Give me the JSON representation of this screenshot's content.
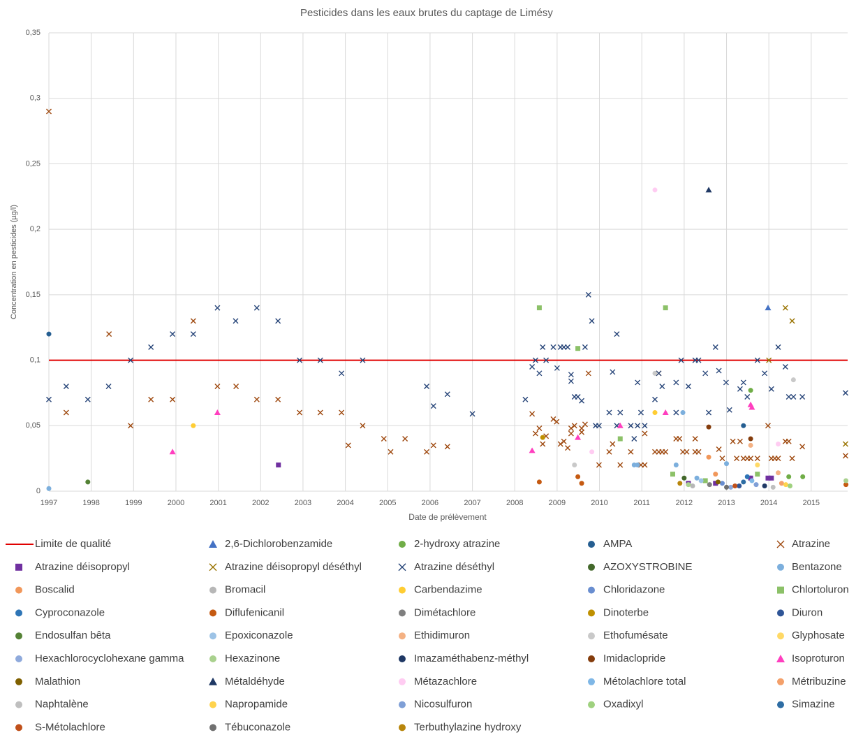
{
  "chart_data": {
    "type": "scatter",
    "title": "Pesticides dans les eaux brutes du captage de Limésy",
    "xlabel": "Date de prélèvement",
    "ylabel": "Concentration en pesticides (µg/l)",
    "xlim": [
      1997,
      2015.86
    ],
    "xticks": [
      1997,
      1998,
      1999,
      2000,
      2001,
      2002,
      2003,
      2004,
      2005,
      2006,
      2007,
      2008,
      2009,
      2010,
      2011,
      2012,
      2013,
      2014,
      2015
    ],
    "ylim": [
      0,
      0.35
    ],
    "yticks": [
      0,
      {
        "value": 0.05,
        "label": "0,05"
      },
      {
        "value": 0.1,
        "label": "0,1"
      },
      {
        "value": 0.15,
        "label": "0,15"
      },
      {
        "value": 0.2,
        "label": "0,2"
      },
      {
        "value": 0.25,
        "label": "0,25"
      },
      {
        "value": 0.3,
        "label": "0,3"
      },
      {
        "value": 0.35,
        "label": "0,35"
      }
    ],
    "grid": true,
    "legend": "bottom",
    "series": [
      {
        "name": "Limite de qualité",
        "marker": "line",
        "color": "#e00000",
        "x": [
          1997,
          2015.86
        ],
        "values": [
          0.1,
          0.1
        ]
      },
      {
        "name": "2,6-Dichlorobenzamide",
        "marker": "triangle",
        "color": "#4472c4",
        "x": [
          2013.98
        ],
        "values": [
          0.14
        ]
      },
      {
        "name": "2-hydroxy atrazine",
        "marker": "circle",
        "color": "#70ad47",
        "x": [
          2013.57,
          2014.47,
          2014.8
        ],
        "values": [
          0.077,
          0.011,
          0.011
        ]
      },
      {
        "name": "AMPA",
        "marker": "circle",
        "color": "#255e91",
        "x": [
          1997,
          2013.4,
          2013.57
        ],
        "values": [
          0.12,
          0.05,
          0.01
        ]
      },
      {
        "name": "Atrazine",
        "marker": "x",
        "color": "#9e480e",
        "x": [
          1997,
          1997.41,
          1998.42,
          1998.93,
          1999.41,
          1999.92,
          2000.41,
          2000.98,
          2001.42,
          2001.91,
          2002.41,
          2002.92,
          2003.41,
          2003.91,
          2004.07,
          2004.41,
          2004.91,
          2005.07,
          2005.41,
          2005.92,
          2006.08,
          2006.41,
          2008.41,
          2008.49,
          2008.58,
          2008.66,
          2008.74,
          2008.91,
          2008.99,
          2009.08,
          2009.16,
          2009.25,
          2009.33,
          2009.33,
          2009.41,
          2009.58,
          2009.58,
          2009.66,
          2009.74,
          2009.99,
          2010.23,
          2010.31,
          2010.49,
          2010.74,
          2010.98,
          2011.07,
          2011.07,
          2011.31,
          2011.4,
          2011.4,
          2011.48,
          2011.56,
          2011.81,
          2011.89,
          2011.97,
          2012.06,
          2012.26,
          2012.26,
          2012.34,
          2012.82,
          2012.9,
          2013.15,
          2013.24,
          2013.32,
          2013.4,
          2013.49,
          2013.57,
          2013.73,
          2013.98,
          2014.06,
          2014.14,
          2014.22,
          2014.39,
          2014.47,
          2014.55,
          2014.79,
          2015.81
        ],
        "values": [
          0.29,
          0.06,
          0.12,
          0.05,
          0.07,
          0.07,
          0.13,
          0.08,
          0.08,
          0.07,
          0.07,
          0.06,
          0.06,
          0.06,
          0.035,
          0.05,
          0.04,
          0.03,
          0.04,
          0.03,
          0.035,
          0.034,
          0.059,
          0.044,
          0.048,
          0.036,
          0.042,
          0.055,
          0.053,
          0.036,
          0.038,
          0.033,
          0.048,
          0.044,
          0.05,
          0.048,
          0.045,
          0.051,
          0.09,
          0.02,
          0.03,
          0.036,
          0.02,
          0.03,
          0.02,
          0.02,
          0.044,
          0.03,
          0.09,
          0.03,
          0.03,
          0.03,
          0.04,
          0.04,
          0.03,
          0.03,
          0.04,
          0.03,
          0.03,
          0.032,
          0.025,
          0.038,
          0.025,
          0.038,
          0.025,
          0.025,
          0.025,
          0.025,
          0.05,
          0.025,
          0.025,
          0.025,
          0.038,
          0.038,
          0.025,
          0.034,
          0.027
        ]
      },
      {
        "name": "Atrazine déisopropyl",
        "marker": "square",
        "color": "#7030a0",
        "x": [
          2002.42,
          2012.1,
          2012.74,
          2013.57,
          2013.98,
          2014.06
        ],
        "values": [
          0.02,
          0.006,
          0.006,
          0.01,
          0.01,
          0.01
        ]
      },
      {
        "name": "Atrazine déisopropyl déséthyl",
        "marker": "x",
        "color": "#997300",
        "x": [
          2014,
          2014.39,
          2014.55,
          2015.81
        ],
        "values": [
          0.1,
          0.14,
          0.13,
          0.036
        ]
      },
      {
        "name": "Atrazine déséthyl",
        "marker": "x",
        "color": "#264478",
        "x": [
          1997,
          1997.41,
          1997.92,
          1998.41,
          1998.93,
          1999.41,
          1999.92,
          2000.41,
          2000.98,
          2001.41,
          2001.91,
          2002.41,
          2002.92,
          2003.41,
          2003.91,
          2004.41,
          2005.92,
          2006.08,
          2006.41,
          2007,
          2008.25,
          2008.41,
          2008.49,
          2008.58,
          2008.66,
          2008.74,
          2008.91,
          2009,
          2009.08,
          2009.16,
          2009.25,
          2009.33,
          2009.33,
          2009.41,
          2009.49,
          2009.58,
          2009.66,
          2009.74,
          2009.82,
          2009.91,
          2009.99,
          2010.23,
          2010.31,
          2010.41,
          2010.41,
          2010.49,
          2010.74,
          2010.82,
          2010.9,
          2010.9,
          2010.98,
          2011.07,
          2011.31,
          2011.4,
          2011.48,
          2011.81,
          2011.81,
          2011.93,
          2012.1,
          2012.26,
          2012.34,
          2012.5,
          2012.58,
          2012.74,
          2012.82,
          2012.99,
          2013.07,
          2013.32,
          2013.4,
          2013.49,
          2013.73,
          2013.9,
          2014.06,
          2014.22,
          2014.39,
          2014.47,
          2014.58,
          2014.79,
          2015.81
        ],
        "values": [
          0.07,
          0.08,
          0.07,
          0.08,
          0.1,
          0.11,
          0.12,
          0.12,
          0.14,
          0.13,
          0.14,
          0.13,
          0.1,
          0.1,
          0.09,
          0.1,
          0.08,
          0.065,
          0.074,
          0.059,
          0.07,
          0.095,
          0.1,
          0.09,
          0.11,
          0.1,
          0.11,
          0.094,
          0.11,
          0.11,
          0.11,
          0.089,
          0.084,
          0.072,
          0.072,
          0.069,
          0.11,
          0.15,
          0.13,
          0.05,
          0.05,
          0.06,
          0.091,
          0.12,
          0.05,
          0.06,
          0.05,
          0.04,
          0.05,
          0.083,
          0.06,
          0.05,
          0.07,
          0.09,
          0.08,
          0.06,
          0.083,
          0.1,
          0.08,
          0.1,
          0.1,
          0.09,
          0.06,
          0.11,
          0.092,
          0.083,
          0.062,
          0.078,
          0.083,
          0.072,
          0.1,
          0.09,
          0.078,
          0.11,
          0.095,
          0.072,
          0.072,
          0.072,
          0.075
        ]
      },
      {
        "name": "AZOXYSTROBINE",
        "marker": "circle",
        "color": "#43682b",
        "x": [
          2012.0
        ],
        "values": [
          0.01
        ]
      },
      {
        "name": "Bentazone",
        "marker": "circle",
        "color": "#7cafdd",
        "x": [
          1997,
          2010.82,
          2010.9,
          2011.81,
          2011.97,
          2012.3,
          2013
        ],
        "values": [
          0.002,
          0.02,
          0.02,
          0.02,
          0.06,
          0.01,
          0.021
        ]
      },
      {
        "name": "Boscalid",
        "marker": "circle",
        "color": "#f1975a",
        "x": [
          2012.58,
          2012.74
        ],
        "values": [
          0.026,
          0.013
        ]
      },
      {
        "name": "Bromacil",
        "marker": "circle",
        "color": "#b7b7b7",
        "x": [
          2012.2
        ],
        "values": [
          0.004
        ]
      },
      {
        "name": "Carbendazime",
        "marker": "circle",
        "color": "#ffcd33",
        "x": [
          2000.41,
          2011.31
        ],
        "values": [
          0.05,
          0.06
        ]
      },
      {
        "name": "Chloridazone",
        "marker": "circle",
        "color": "#698ed0",
        "x": [
          2012.9
        ],
        "values": [
          0.006
        ]
      },
      {
        "name": "Chlortoluron",
        "marker": "square",
        "color": "#8cc168",
        "x": [
          2008.58,
          2009.49,
          2010.49,
          2011.56,
          2011.73,
          2012.5,
          2013.73
        ],
        "values": [
          0.14,
          0.109,
          0.04,
          0.14,
          0.013,
          0.008,
          0.013
        ]
      },
      {
        "name": "Cyproconazole",
        "marker": "circle",
        "color": "#2e75b6",
        "x": [
          2013.49
        ],
        "values": [
          0.011
        ]
      },
      {
        "name": "Diflufenicanil",
        "marker": "circle",
        "color": "#c55a11",
        "x": [
          2008.58,
          2009.49,
          2009.58,
          2015.82
        ],
        "values": [
          0.007,
          0.011,
          0.006,
          0.005
        ]
      },
      {
        "name": "Dimétachlore",
        "marker": "circle",
        "color": "#7f7f7f",
        "x": [
          2012.6
        ],
        "values": [
          0.005
        ]
      },
      {
        "name": "Dinoterbe",
        "marker": "circle",
        "color": "#bf9000",
        "x": [
          2008.66
        ],
        "values": [
          0.041
        ]
      },
      {
        "name": "Diuron",
        "marker": "circle",
        "color": "#2f5597",
        "x": [
          2013.3
        ],
        "values": [
          0.004
        ]
      },
      {
        "name": "Endosulfan bêta",
        "marker": "circle",
        "color": "#548235",
        "x": [
          1997.92
        ],
        "values": [
          0.007
        ]
      },
      {
        "name": "Epoxiconazole",
        "marker": "circle",
        "color": "#9dc3e6",
        "x": [
          2012.4
        ],
        "values": [
          0.008
        ]
      },
      {
        "name": "Ethidimuron",
        "marker": "circle",
        "color": "#f4b183",
        "x": [
          2013.57,
          2014.22
        ],
        "values": [
          0.035,
          0.014
        ]
      },
      {
        "name": "Ethofumésate",
        "marker": "circle",
        "color": "#c9c9c9",
        "x": [
          2009.41,
          2011.31,
          2014.58
        ],
        "values": [
          0.02,
          0.09,
          0.085
        ]
      },
      {
        "name": "Glyphosate",
        "marker": "circle",
        "color": "#ffd966",
        "x": [
          2013.73
        ],
        "values": [
          0.02
        ]
      },
      {
        "name": "Hexachlorocyclohexane gamma",
        "marker": "circle",
        "color": "#8faadc",
        "x": [
          2013.1
        ],
        "values": [
          0.003
        ]
      },
      {
        "name": "Hexazinone",
        "marker": "circle",
        "color": "#a9d18e",
        "x": [
          2012.1,
          2015.82
        ],
        "values": [
          0.005,
          0.008
        ]
      },
      {
        "name": "Imazaméthabenz-méthyl",
        "marker": "circle",
        "color": "#1f3864",
        "x": [
          2013.9
        ],
        "values": [
          0.004
        ]
      },
      {
        "name": "Imidaclopride",
        "marker": "circle",
        "color": "#843c0c",
        "x": [
          2012.58,
          2013.57
        ],
        "values": [
          0.049,
          0.04
        ]
      },
      {
        "name": "Isoproturon",
        "marker": "triangle",
        "color": "#ff3fbf",
        "x": [
          1999.92,
          2000.98,
          2008.41,
          2009.49,
          2010.49,
          2011.56,
          2013.57,
          2013.6
        ],
        "values": [
          0.03,
          0.06,
          0.031,
          0.041,
          0.05,
          0.06,
          0.066,
          0.064
        ]
      },
      {
        "name": "Malathion",
        "marker": "circle",
        "color": "#7f6000",
        "x": [
          2012.8
        ],
        "values": [
          0.007
        ]
      },
      {
        "name": "Métaldéhyde",
        "marker": "triangle",
        "color": "#1f3864",
        "x": [
          2012.58
        ],
        "values": [
          0.23
        ]
      },
      {
        "name": "Métazachlore",
        "marker": "circle",
        "color": "#ffccf2",
        "x": [
          2009.82,
          2011.31,
          2014.22
        ],
        "values": [
          0.03,
          0.23,
          0.036
        ]
      },
      {
        "name": "Métolachlore total",
        "marker": "circle",
        "color": "#7fb7e6",
        "x": [
          2013.6
        ],
        "values": [
          0.008
        ]
      },
      {
        "name": "Métribuzine",
        "marker": "circle",
        "color": "#f4a06a",
        "x": [
          2014.3
        ],
        "values": [
          0.006
        ]
      },
      {
        "name": "Naphtalène",
        "marker": "circle",
        "color": "#bfbfbf",
        "x": [
          2014.1
        ],
        "values": [
          0.003
        ]
      },
      {
        "name": "Napropamide",
        "marker": "circle",
        "color": "#ffd34d",
        "x": [
          2014.4
        ],
        "values": [
          0.005
        ]
      },
      {
        "name": "Nicosulfuron",
        "marker": "circle",
        "color": "#7f9fd6",
        "x": [
          2013.7
        ],
        "values": [
          0.005
        ]
      },
      {
        "name": "Oxadixyl",
        "marker": "circle",
        "color": "#9fd17f",
        "x": [
          2014.5
        ],
        "values": [
          0.004
        ]
      },
      {
        "name": "Simazine",
        "marker": "circle",
        "color": "#2e6da4",
        "x": [
          2013.4
        ],
        "values": [
          0.007
        ]
      },
      {
        "name": "S-Métolachlore",
        "marker": "circle",
        "color": "#c0501a",
        "x": [
          2013.2
        ],
        "values": [
          0.004
        ]
      },
      {
        "name": "Tébuconazole",
        "marker": "circle",
        "color": "#707070",
        "x": [
          2013.0
        ],
        "values": [
          0.003
        ]
      },
      {
        "name": "Terbuthylazine hydroxy",
        "marker": "circle",
        "color": "#b8860b",
        "x": [
          2011.9
        ],
        "values": [
          0.006
        ]
      }
    ]
  }
}
